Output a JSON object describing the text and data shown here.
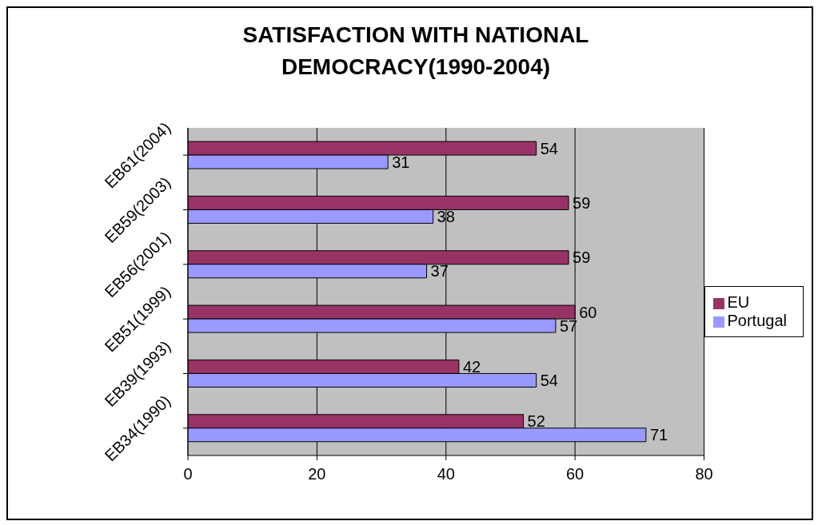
{
  "chart_data": {
    "type": "bar",
    "orientation": "horizontal",
    "title": "SATISFACTION WITH NATIONAL DEMOCRACY(1990-2004)",
    "categories": [
      "EB61(2004)",
      "EB59(2003)",
      "EB56(2001)",
      "EB51(1999)",
      "EB39(1993)",
      "EB34(1990)"
    ],
    "series": [
      {
        "name": "EU",
        "color": "#993366",
        "values": [
          54,
          59,
          59,
          60,
          42,
          52
        ]
      },
      {
        "name": "Portugal",
        "color": "#9999ff",
        "values": [
          31,
          38,
          37,
          57,
          54,
          71
        ]
      }
    ],
    "xlim": [
      0,
      80
    ],
    "xticks": [
      0,
      20,
      40,
      60,
      80
    ],
    "grid": "x",
    "legend": "right",
    "data_labels": true
  }
}
